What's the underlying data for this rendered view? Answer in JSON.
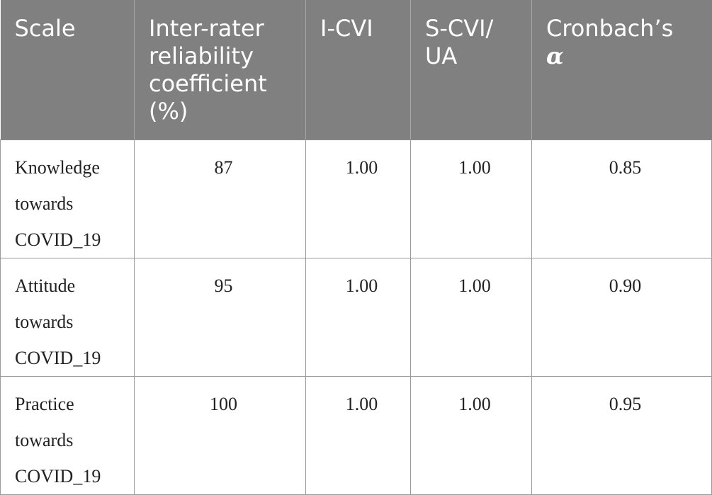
{
  "table": {
    "headers": [
      [
        "Scale"
      ],
      [
        "Inter-rater",
        "reliability",
        "coefficient",
        "(%)"
      ],
      [
        "I-CVI"
      ],
      [
        "S-CVI/",
        "UA"
      ],
      [
        "Cronbach’s",
        "α"
      ]
    ],
    "rows": [
      {
        "scale": [
          "Knowledge",
          "towards",
          "COVID_19"
        ],
        "inter_rater": "87",
        "i_cvi": "1.00",
        "s_cvi_ua": "1.00",
        "cronbach_alpha": "0.85"
      },
      {
        "scale": [
          "Attitude",
          "towards",
          "COVID_19"
        ],
        "inter_rater": "95",
        "i_cvi": "1.00",
        "s_cvi_ua": "1.00",
        "cronbach_alpha": "0.90"
      },
      {
        "scale": [
          "Practice",
          "towards",
          "COVID_19"
        ],
        "inter_rater": "100",
        "i_cvi": "1.00",
        "s_cvi_ua": "1.00",
        "cronbach_alpha": "0.95"
      }
    ],
    "colors": {
      "header_bg": "#808080",
      "header_text": "#ffffff",
      "border": "#9a9a9a",
      "body_text": "#222222"
    }
  }
}
